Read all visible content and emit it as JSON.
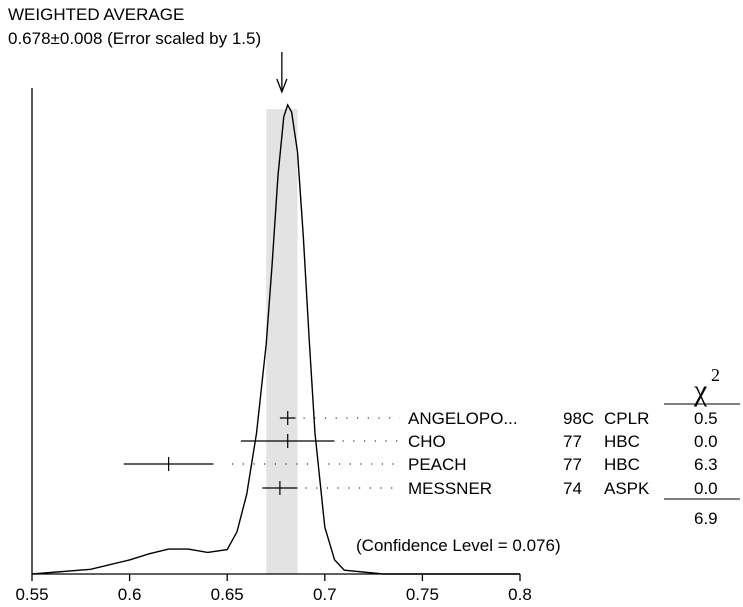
{
  "chart_data": {
    "type": "ideogram",
    "title": "WEIGHTED AVERAGE",
    "subtitle": "0.678±0.008 (Error scaled by 1.5)",
    "weighted_average": {
      "value": 0.678,
      "error": 0.008
    },
    "xlim": [
      0.55,
      0.8
    ],
    "x_ticks": [
      "0.55",
      "0.6",
      "0.65",
      "0.7",
      "0.75",
      "0.8"
    ],
    "chi2_header": "χ",
    "chi2_header_sup": "2",
    "measurements": [
      {
        "author": "ANGELOPO...",
        "year": "98C",
        "tech": "CPLR",
        "chi2": "0.5",
        "value": 0.681,
        "error": 0.004
      },
      {
        "author": "CHO",
        "year": "77",
        "tech": "HBC",
        "chi2": "0.0",
        "value": 0.681,
        "error": 0.024
      },
      {
        "author": "PEACH",
        "year": "77",
        "tech": "HBC",
        "chi2": "6.3",
        "value": 0.62,
        "error": 0.023
      },
      {
        "author": "MESSNER",
        "year": "74",
        "tech": "ASPK",
        "chi2": "0.0",
        "value": 0.677,
        "error": 0.009
      }
    ],
    "chi2_total": "6.9",
    "confidence_level": "(Confidence Level = 0.076)",
    "curve": {
      "x": [
        0.55,
        0.58,
        0.6,
        0.61,
        0.62,
        0.63,
        0.64,
        0.65,
        0.655,
        0.66,
        0.665,
        0.67,
        0.673,
        0.676,
        0.679,
        0.681,
        0.683,
        0.686,
        0.689,
        0.692,
        0.695,
        0.7,
        0.705,
        0.71,
        0.73,
        0.76,
        0.8
      ],
      "y_rel": [
        0.0,
        0.01,
        0.03,
        0.043,
        0.053,
        0.053,
        0.046,
        0.052,
        0.09,
        0.17,
        0.3,
        0.49,
        0.66,
        0.85,
        0.975,
        1.0,
        0.985,
        0.9,
        0.72,
        0.5,
        0.3,
        0.1,
        0.03,
        0.008,
        0.0,
        0.0,
        0.0
      ]
    }
  }
}
